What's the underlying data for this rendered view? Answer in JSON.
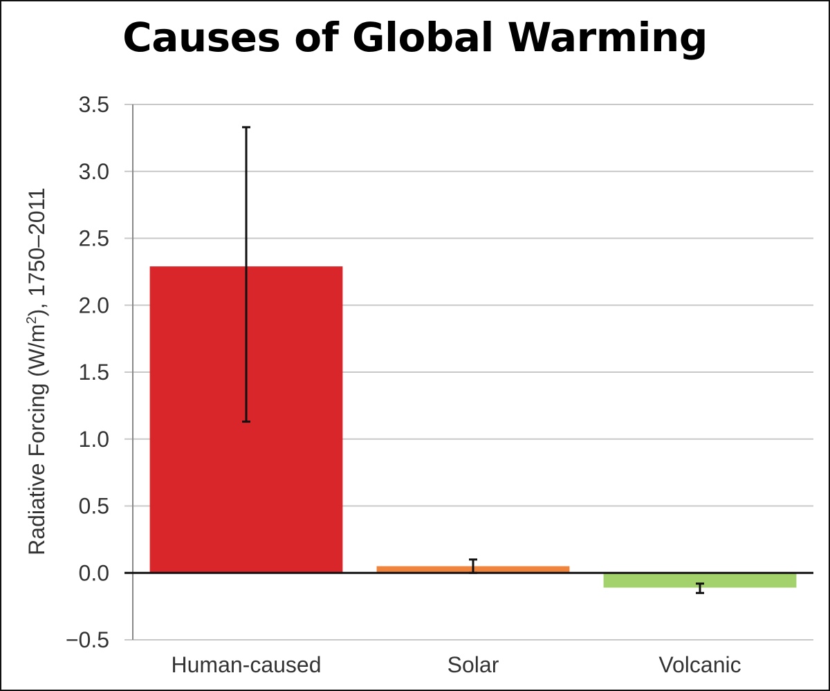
{
  "chart_data": {
    "type": "bar",
    "title": "Causes of Global Warming",
    "ylabel_main": "Radiative Forcing (W/m",
    "ylabel_sup": "2",
    "ylabel_tail": "), 1750–2011",
    "xlabel": "",
    "categories": [
      "Human-caused",
      "Solar",
      "Volcanic"
    ],
    "values": [
      2.29,
      0.05,
      -0.11
    ],
    "error_low": [
      1.13,
      0.0,
      -0.15
    ],
    "error_high": [
      3.33,
      0.1,
      -0.08
    ],
    "colors": [
      "#d9262b",
      "#f0843c",
      "#a3d16b"
    ],
    "ylim": [
      -0.5,
      3.5
    ],
    "yticks": [
      3.5,
      3.0,
      2.5,
      2.0,
      1.5,
      1.0,
      0.5,
      0.0,
      -0.5
    ],
    "ytick_labels": [
      "3.5",
      "3.0",
      "2.5",
      "2.0",
      "1.5",
      "1.0",
      "0.5",
      "0.0",
      "−0.5"
    ],
    "grid": true,
    "legend": "none"
  }
}
